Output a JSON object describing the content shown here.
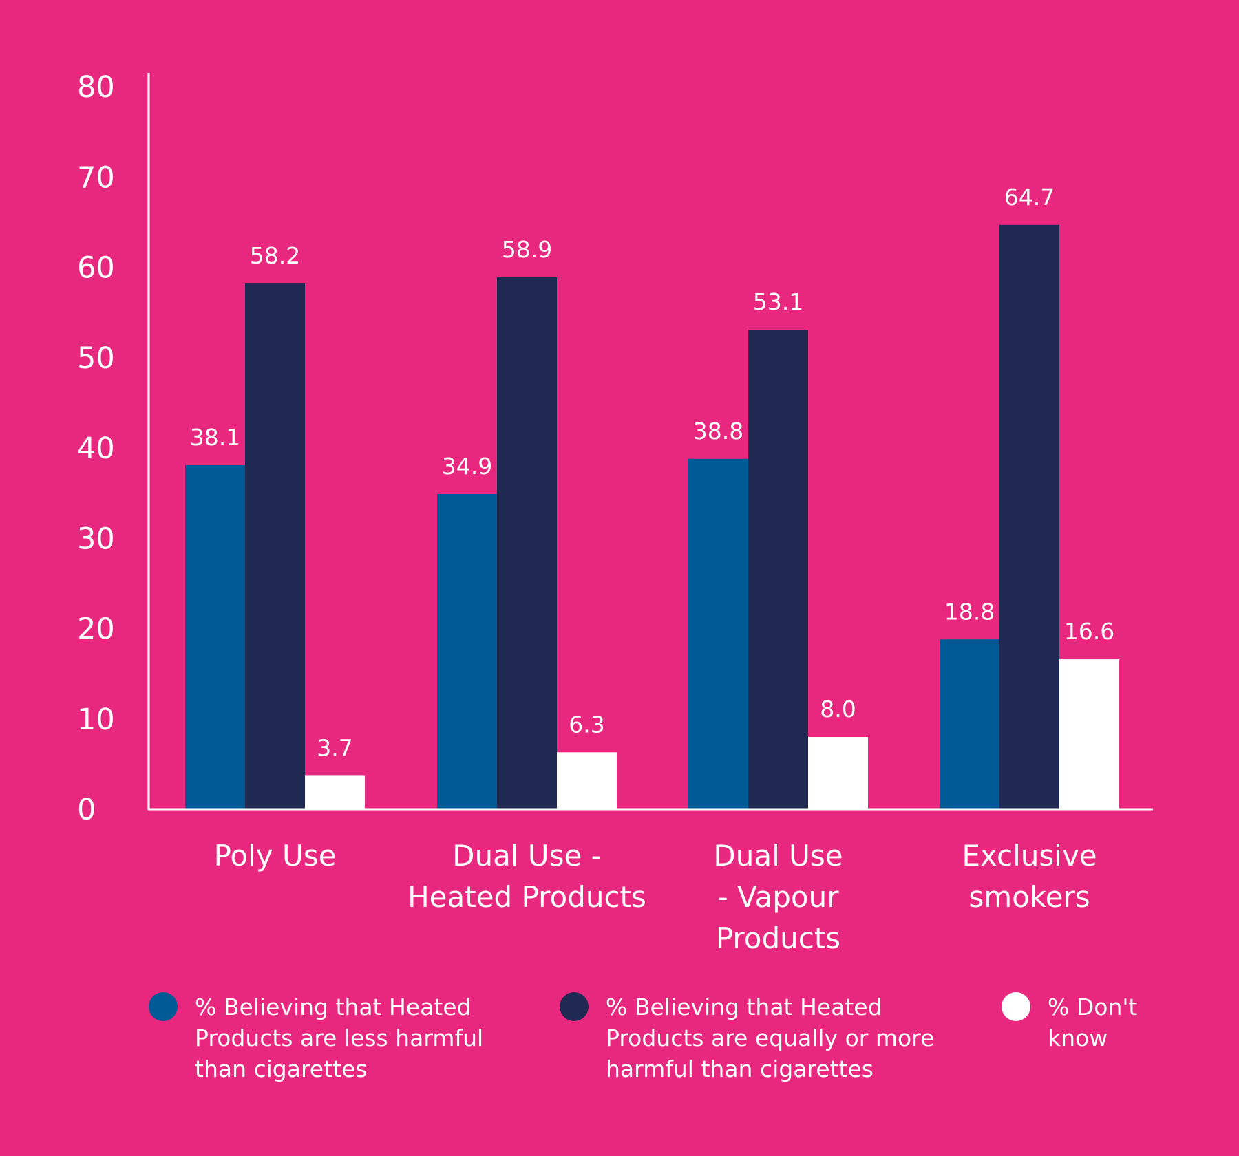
{
  "chart_data": {
    "type": "bar",
    "title": "",
    "xlabel": "",
    "ylabel": "",
    "ylim": [
      0,
      80
    ],
    "yticks": [
      "0",
      "10",
      "20",
      "30",
      "40",
      "50",
      "60",
      "70",
      "80"
    ],
    "categories": [
      [
        "Poly Use"
      ],
      [
        "Dual Use -",
        "Heated Products"
      ],
      [
        "Dual Use",
        "- Vapour",
        "Products"
      ],
      [
        "Exclusive",
        "smokers"
      ]
    ],
    "series": [
      {
        "name": "% Believing that Heated Products are less harmful than cigarettes",
        "legend_lines": [
          "% Believing that Heated",
          "Products are less harmful",
          "than cigarettes"
        ],
        "color": "#005A96",
        "values": [
          38.1,
          34.9,
          38.8,
          18.8
        ],
        "labels": [
          "38.1",
          "34.9",
          "38.8",
          "18.8"
        ]
      },
      {
        "name": "% Believing that Heated Products are equally or more harmful than cigarettes",
        "legend_lines": [
          "% Believing that Heated",
          "Products are equally or more",
          "harmful than cigarettes"
        ],
        "color": "#1F2951",
        "values": [
          58.2,
          58.9,
          53.1,
          64.7
        ],
        "labels": [
          "58.2",
          "58.9",
          "53.1",
          "64.7"
        ]
      },
      {
        "name": "% Don't know",
        "legend_lines": [
          "% Don't",
          "know"
        ],
        "color": "#FFFFFF",
        "values": [
          3.7,
          6.3,
          8.0,
          16.6
        ],
        "labels": [
          "3.7",
          "6.3",
          "8.0",
          "16.6"
        ]
      }
    ],
    "legend_position": "bottom",
    "background_color": "#E8277F",
    "axis_color": "#FFFFFF",
    "grid": false
  }
}
